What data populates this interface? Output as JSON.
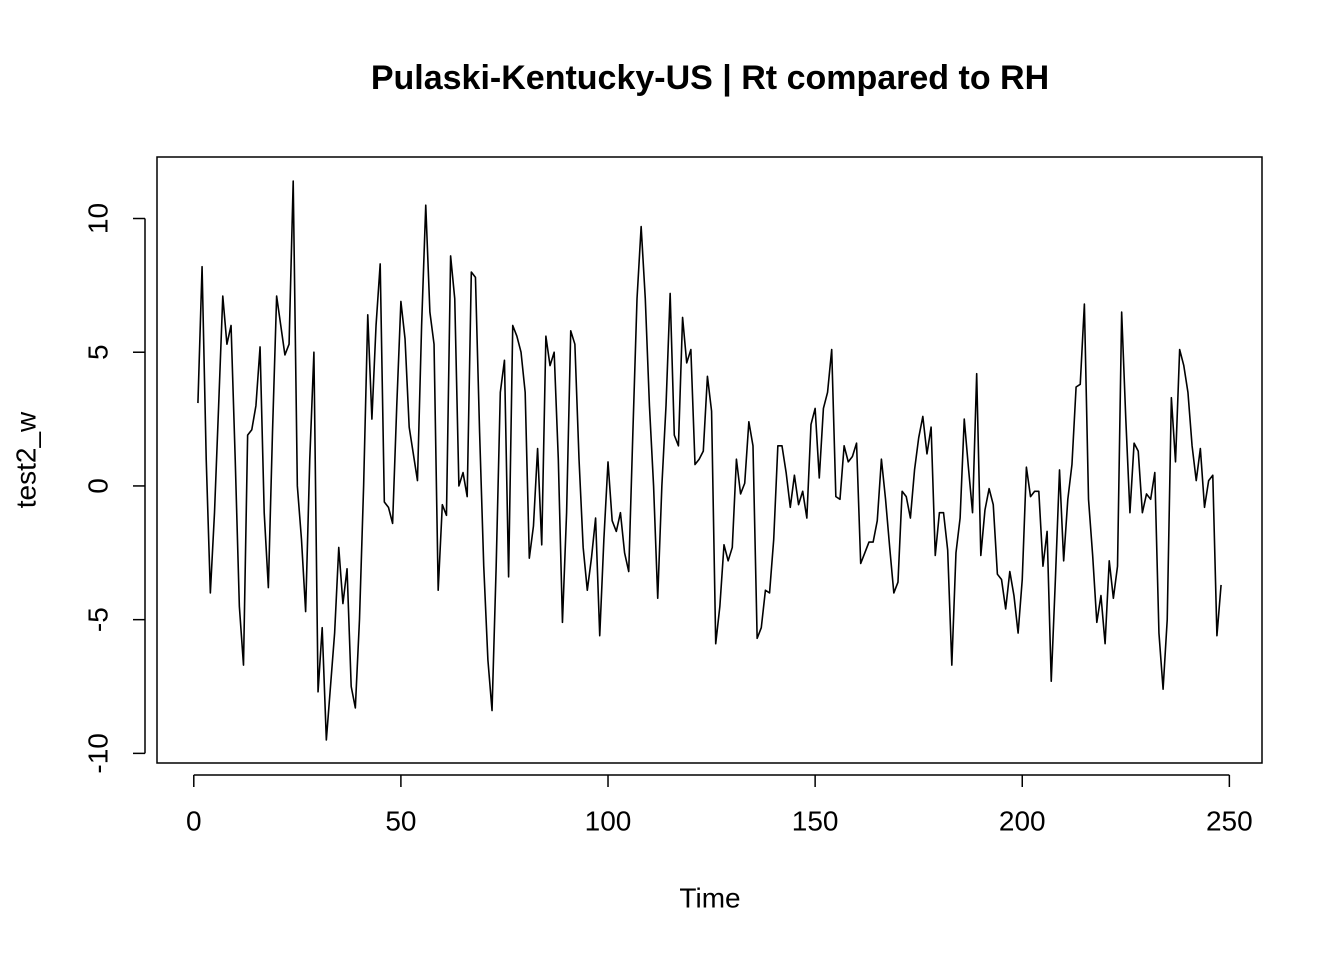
{
  "chart_data": {
    "type": "line",
    "title": "Pulaski-Kentucky-US | Rt compared to RH",
    "xlabel": "Time",
    "ylabel": "test2_w",
    "color": "#000000",
    "x": [
      1,
      2,
      3,
      4,
      5,
      6,
      7,
      8,
      9,
      10,
      11,
      12,
      13,
      14,
      15,
      16,
      17,
      18,
      19,
      20,
      21,
      22,
      23,
      24,
      25,
      26,
      27,
      28,
      29,
      30,
      31,
      32,
      33,
      34,
      35,
      36,
      37,
      38,
      39,
      40,
      41,
      42,
      43,
      44,
      45,
      46,
      47,
      48,
      49,
      50,
      51,
      52,
      53,
      54,
      55,
      56,
      57,
      58,
      59,
      60,
      61,
      62,
      63,
      64,
      65,
      66,
      67,
      68,
      69,
      70,
      71,
      72,
      73,
      74,
      75,
      76,
      77,
      78,
      79,
      80,
      81,
      82,
      83,
      84,
      85,
      86,
      87,
      88,
      89,
      90,
      91,
      92,
      93,
      94,
      95,
      96,
      97,
      98,
      99,
      100,
      101,
      102,
      103,
      104,
      105,
      106,
      107,
      108,
      109,
      110,
      111,
      112,
      113,
      114,
      115,
      116,
      117,
      118,
      119,
      120,
      121,
      122,
      123,
      124,
      125,
      126,
      127,
      128,
      129,
      130,
      131,
      132,
      133,
      134,
      135,
      136,
      137,
      138,
      139,
      140,
      141,
      142,
      143,
      144,
      145,
      146,
      147,
      148,
      149,
      150,
      151,
      152,
      153,
      154,
      155,
      156,
      157,
      158,
      159,
      160,
      161,
      162,
      163,
      164,
      165,
      166,
      167,
      168,
      169,
      170,
      171,
      172,
      173,
      174,
      175,
      176,
      177,
      178,
      179,
      180,
      181,
      182,
      183,
      184,
      185,
      186,
      187,
      188,
      189,
      190,
      191,
      192,
      193,
      194,
      195,
      196,
      197,
      198,
      199,
      200,
      201,
      202,
      203,
      204,
      205,
      206,
      207,
      208,
      209,
      210,
      211,
      212,
      213,
      214,
      215,
      216,
      217,
      218,
      219,
      220,
      221,
      222,
      223,
      224,
      225,
      226,
      227,
      228,
      229,
      230,
      231,
      232,
      233,
      234,
      235,
      236,
      237,
      238,
      239,
      240,
      241,
      242,
      243,
      244,
      245,
      246,
      247,
      248
    ],
    "values": [
      3.1,
      8.2,
      1,
      -4.0,
      -1,
      3,
      7.1,
      5.3,
      6.0,
      1,
      -4.5,
      -6.7,
      1.9,
      2.1,
      3,
      5.2,
      -1,
      -3.8,
      2,
      7.1,
      6,
      4.9,
      5.3,
      11.4,
      0,
      -2,
      -4.7,
      1,
      5.0,
      -7.7,
      -5.3,
      -9.5,
      -7.5,
      -5.5,
      -2.3,
      -4.4,
      -3.1,
      -7.5,
      -8.3,
      -5,
      0,
      6.4,
      2.5,
      6,
      8.3,
      -0.6,
      -0.8,
      -1.4,
      3,
      6.9,
      5.5,
      2.2,
      1.2,
      0.2,
      6,
      10.5,
      6.5,
      5.3,
      -3.9,
      -0.7,
      -1.1,
      8.6,
      7,
      0,
      0.5,
      -0.4,
      8.0,
      7.8,
      2,
      -3,
      -6.5,
      -8.4,
      -3,
      3.5,
      4.7,
      -3.4,
      6.0,
      5.6,
      5.0,
      3.5,
      -2.7,
      -1.5,
      1.4,
      -2.2,
      5.6,
      4.5,
      5.0,
      1,
      -5.1,
      -1,
      5.8,
      5.3,
      1,
      -2.3,
      -3.9,
      -2.7,
      -1.2,
      -5.6,
      -2,
      0.9,
      -1.3,
      -1.7,
      -1,
      -2.5,
      -3.2,
      2,
      7,
      9.7,
      7,
      3,
      0,
      -4.2,
      0,
      3,
      7.2,
      1.9,
      1.5,
      6.3,
      4.6,
      5.1,
      0.8,
      1,
      1.3,
      4.1,
      2.8,
      -5.9,
      -4.5,
      -2.2,
      -2.8,
      -2.3,
      1,
      -0.3,
      0.1,
      2.4,
      1.5,
      -5.7,
      -5.3,
      -3.9,
      -4,
      -2,
      1.5,
      1.5,
      0.5,
      -0.8,
      0.4,
      -0.7,
      -0.2,
      -1.2,
      2.3,
      2.9,
      0.3,
      2.9,
      3.5,
      5.1,
      -0.4,
      -0.5,
      1.5,
      0.9,
      1.1,
      1.6,
      -2.9,
      -2.5,
      -2.1,
      -2.1,
      -1.3,
      1.0,
      -0.5,
      -2.3,
      -4.0,
      -3.6,
      -0.2,
      -0.4,
      -1.2,
      0.6,
      1.8,
      2.6,
      1.2,
      2.2,
      -2.6,
      -1.0,
      -1.0,
      -2.4,
      -6.7,
      -2.5,
      -1.2,
      2.5,
      0.7,
      -1.0,
      4.2,
      -2.6,
      -0.9,
      -0.1,
      -0.7,
      -3.3,
      -3.5,
      -4.6,
      -3.2,
      -4.1,
      -5.5,
      -3.5,
      0.7,
      -0.4,
      -0.2,
      -0.2,
      -3.0,
      -1.7,
      -7.3,
      -3.5,
      0.6,
      -2.8,
      -0.5,
      0.8,
      3.7,
      3.8,
      6.8,
      -0.5,
      -2.6,
      -5.1,
      -4.1,
      -5.9,
      -2.8,
      -4.2,
      -3.0,
      6.5,
      2.5,
      -1.0,
      1.6,
      1.3,
      -1.0,
      -0.3,
      -0.5,
      0.5,
      -5.5,
      -7.6,
      -5.0,
      3.3,
      0.9,
      5.1,
      4.5,
      3.5,
      1.5,
      0.2,
      1.4,
      -0.8,
      0.2,
      0.4,
      -5.6,
      -3.7
    ],
    "xlim": [
      -8.88,
      257.88
    ],
    "ylim": [
      -10.36,
      12.3
    ],
    "xticks": [
      0,
      50,
      100,
      150,
      200,
      250
    ],
    "yticks": [
      -10,
      -5,
      0,
      5,
      10
    ]
  }
}
